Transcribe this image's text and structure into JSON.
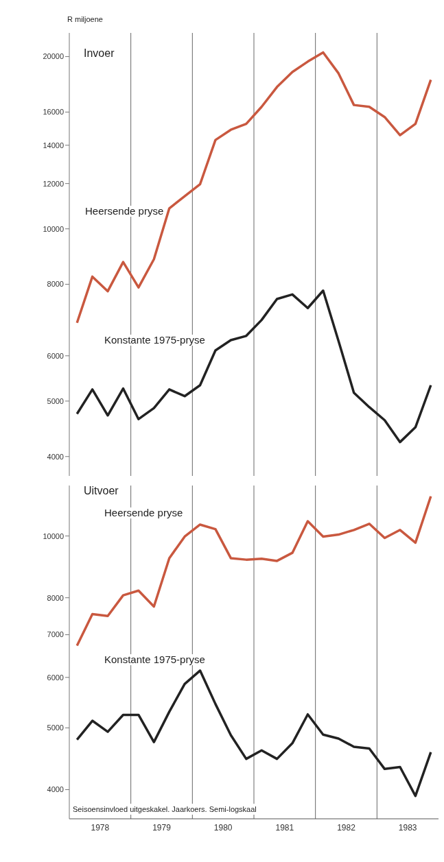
{
  "chart_data": [
    {
      "type": "line",
      "title": "Invoer",
      "ylabel": "R miljoene",
      "x": [
        1978.125,
        1978.375,
        1978.625,
        1978.875,
        1979.125,
        1979.375,
        1979.625,
        1979.875,
        1980.125,
        1980.375,
        1980.625,
        1980.875,
        1981.125,
        1981.375,
        1981.625,
        1981.875,
        1982.125,
        1982.375,
        1982.625,
        1982.875,
        1983.125,
        1983.375,
        1983.625,
        1983.875
      ],
      "xlim": [
        1978,
        1984
      ],
      "tick_labels": "y",
      "log": true,
      "ylim": [
        3700,
        22000
      ],
      "yticks": [
        4000,
        5000,
        6000,
        8000,
        10000,
        12000,
        14000,
        16000,
        20000
      ],
      "ref_lines": [
        {
          "axis": "x",
          "value": 1979
        },
        {
          "axis": "x",
          "value": 1980
        },
        {
          "axis": "x",
          "value": 1981
        },
        {
          "axis": "x",
          "value": 1982
        },
        {
          "axis": "x",
          "value": 1983
        }
      ],
      "series": [
        {
          "name": "Heersende pryse",
          "color": "#c9583f",
          "values": [
            6850,
            8250,
            7780,
            8750,
            7900,
            8850,
            10860,
            11400,
            11970,
            14300,
            14900,
            15260,
            16340,
            17700,
            18800,
            19600,
            20340,
            18700,
            16460,
            16340,
            15680,
            14580,
            15260,
            18220
          ]
        },
        {
          "name": "Konstante 1975-pryse",
          "color": "#222222",
          "values": [
            4750,
            5240,
            4720,
            5260,
            4650,
            4860,
            5240,
            5100,
            5330,
            6130,
            6390,
            6500,
            6930,
            7540,
            7680,
            7270,
            7800,
            6370,
            5170,
            4880,
            4630,
            4240,
            4500,
            5330
          ]
        }
      ]
    },
    {
      "type": "line",
      "title": "Uitvoer",
      "x": [
        1978.125,
        1978.375,
        1978.625,
        1978.875,
        1979.125,
        1979.375,
        1979.625,
        1979.875,
        1980.125,
        1980.375,
        1980.625,
        1980.875,
        1981.125,
        1981.375,
        1981.625,
        1981.875,
        1982.125,
        1982.375,
        1982.625,
        1982.875,
        1983.125,
        1983.375,
        1983.625,
        1983.875
      ],
      "xlim": [
        1978,
        1984
      ],
      "xticks": [
        {
          "value": 1978.5,
          "label": "1978"
        },
        {
          "value": 1979.5,
          "label": "1979"
        },
        {
          "value": 1980.5,
          "label": "1980"
        },
        {
          "value": 1981.5,
          "label": "1981"
        },
        {
          "value": 1982.5,
          "label": "1982"
        },
        {
          "value": 1983.5,
          "label": "1983"
        }
      ],
      "log": true,
      "ylim": [
        3600,
        12000
      ],
      "yticks": [
        4000,
        5000,
        6000,
        7000,
        8000,
        10000
      ],
      "ref_lines": [
        {
          "axis": "x",
          "value": 1979
        },
        {
          "axis": "x",
          "value": 1980
        },
        {
          "axis": "x",
          "value": 1981
        },
        {
          "axis": "x",
          "value": 1982
        },
        {
          "axis": "x",
          "value": 1983
        }
      ],
      "annotations": [
        "Seisoensinvloed uitgeskakel. Jaarkoers. Semi-logskaal"
      ],
      "series": [
        {
          "name": "Heersende pryse",
          "color": "#c9583f",
          "values": [
            6730,
            7540,
            7490,
            8070,
            8210,
            7750,
            9230,
            9980,
            10420,
            10250,
            9230,
            9180,
            9210,
            9140,
            9410,
            10550,
            9980,
            10050,
            10220,
            10450,
            9930,
            10220,
            9760,
            11540
          ]
        },
        {
          "name": "Konstante 1975-pryse",
          "color": "#222222",
          "values": [
            4790,
            5130,
            4930,
            5240,
            5240,
            4750,
            5300,
            5860,
            6150,
            5450,
            4870,
            4470,
            4610,
            4470,
            4730,
            5250,
            4880,
            4810,
            4670,
            4640,
            4310,
            4340,
            3910,
            4580
          ]
        }
      ]
    }
  ]
}
